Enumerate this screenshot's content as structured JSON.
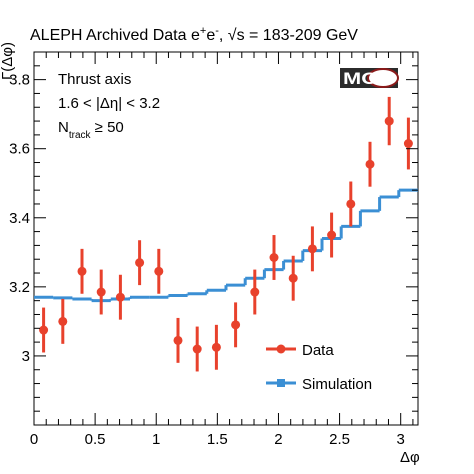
{
  "chart_data": {
    "type": "scatter",
    "title_prefix": "ALEPH Archived Data e",
    "title_sup1": "+",
    "title_mid": "e",
    "title_sup2": "-",
    "title_sqrt": "√s = 183-209 GeV",
    "ylabel": "Γ(Δφ)",
    "xlabel": "Δφ",
    "xlim": [
      0,
      3.1416
    ],
    "ylim": [
      2.8,
      3.88
    ],
    "x_ticks": [
      0,
      0.5,
      1,
      1.5,
      2,
      2.5,
      3
    ],
    "x_tick_labels": [
      "0",
      "0.5",
      "1",
      "1.5",
      "2",
      "2.5",
      "3"
    ],
    "y_ticks": [
      3.0,
      3.2,
      3.4,
      3.6,
      3.8
    ],
    "y_tick_labels": [
      "3",
      "3.2",
      "3.4",
      "3.6",
      "3.8"
    ],
    "annotations": {
      "line1": "Thrust axis",
      "line2": "1.6 < |Δη| < 3.2",
      "line3_main": "N",
      "line3_sub": "track",
      "line3_rest": " ≥ 50"
    },
    "logo": "MOD",
    "legend_position": "bottom-right",
    "series": [
      {
        "name": "Data",
        "color": "#e8412c",
        "style": "points-with-errorbars",
        "x": [
          0.0785,
          0.2356,
          0.3927,
          0.5498,
          0.7069,
          0.8639,
          1.021,
          1.1781,
          1.3352,
          1.4923,
          1.6493,
          1.8064,
          1.9635,
          2.1206,
          2.2777,
          2.4347,
          2.5918,
          2.7489,
          2.906,
          3.0631
        ],
        "y": [
          3.075,
          3.1,
          3.245,
          3.185,
          3.17,
          3.27,
          3.245,
          3.045,
          3.02,
          3.025,
          3.09,
          3.185,
          3.285,
          3.225,
          3.31,
          3.35,
          3.44,
          3.555,
          3.68,
          3.615
        ],
        "err": [
          0.065,
          0.065,
          0.065,
          0.065,
          0.065,
          0.065,
          0.065,
          0.065,
          0.065,
          0.065,
          0.065,
          0.065,
          0.065,
          0.065,
          0.065,
          0.065,
          0.065,
          0.065,
          0.07,
          0.075
        ]
      },
      {
        "name": "Simulation",
        "color": "#3b8fd4",
        "style": "step",
        "bin_edges": [
          0,
          0.1571,
          0.3142,
          0.4712,
          0.6283,
          0.7854,
          0.9425,
          1.0996,
          1.2566,
          1.4137,
          1.5708,
          1.7279,
          1.885,
          2.042,
          2.1991,
          2.3562,
          2.5133,
          2.6704,
          2.8274,
          2.9845,
          3.1416
        ],
        "values": [
          3.17,
          3.168,
          3.165,
          3.16,
          3.165,
          3.17,
          3.17,
          3.175,
          3.18,
          3.19,
          3.205,
          3.225,
          3.25,
          3.275,
          3.305,
          3.34,
          3.375,
          3.42,
          3.46,
          3.48
        ]
      }
    ]
  }
}
